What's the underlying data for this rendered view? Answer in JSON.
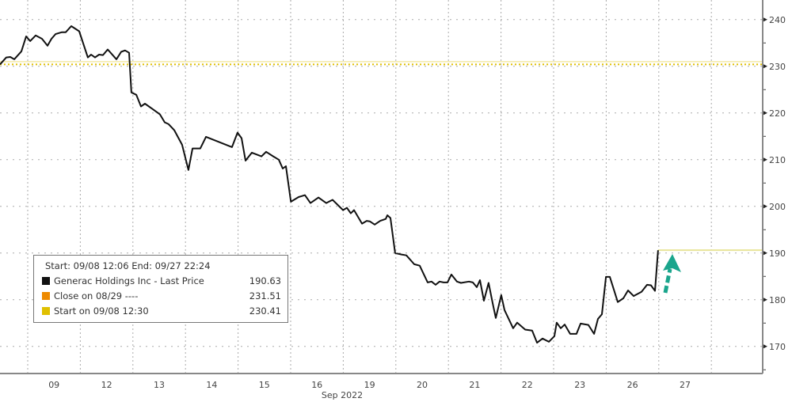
{
  "chart_data": {
    "type": "line",
    "title": "",
    "xlabel": "Sep 2022",
    "ylabel": "",
    "ylim": [
      164.2,
      244.2
    ],
    "grid": true,
    "legend_placement": "bottom-left",
    "y_ticks": [
      170,
      180,
      190,
      200,
      210,
      220,
      230,
      240
    ],
    "y_axis_side": "right",
    "x_tick_labels": [
      "09",
      "12",
      "13",
      "14",
      "15",
      "16",
      "19",
      "20",
      "21",
      "22",
      "23",
      "26",
      "27"
    ],
    "trading_days": [
      "08",
      "09",
      "12",
      "13",
      "14",
      "15",
      "16",
      "19",
      "20",
      "21",
      "22",
      "23",
      "26",
      "27"
    ],
    "legend": {
      "header": "Start: 09/08 12:06 End: 09/27 22:24",
      "entries": [
        {
          "label": "Generac Holdings Inc - Last Price",
          "value": "190.63",
          "color": "#111111"
        },
        {
          "label": "Close on 08/29 ----",
          "value": "231.51",
          "color": "#ee8a00"
        },
        {
          "label": "Start on 09/08 12:30",
          "value": "230.41",
          "color": "#e0c000"
        }
      ]
    },
    "reference_lines": [
      {
        "name": "Close on 08/29",
        "value": 231.51,
        "color": "#f3e9a8"
      },
      {
        "name": "Start on 09/08 12:30",
        "value": 230.41,
        "color": "#e0c000"
      },
      {
        "name": "Last Price",
        "value": 190.63,
        "color": "#e8e49a"
      }
    ],
    "annotation": {
      "type": "arrow",
      "color": "#1aa58c",
      "target": "last price 190.63"
    },
    "series": [
      {
        "name": "Generac Holdings Inc - Last Price",
        "color": "#111111",
        "points": [
          [
            "09/08 12:30",
            230.4
          ],
          [
            "09/08 13:21",
            231.9
          ],
          [
            "09/08 13:51",
            232.0
          ],
          [
            "09/08 14:20",
            231.5
          ],
          [
            "09/08 15:13",
            233.2
          ],
          [
            "09/08 15:48",
            236.4
          ],
          [
            "09/09 09:48",
            235.4
          ],
          [
            "09/09 10:29",
            236.6
          ],
          [
            "09/09 11:16",
            235.9
          ],
          [
            "09/09 11:57",
            234.4
          ],
          [
            "09/09 12:26",
            235.9
          ],
          [
            "09/09 12:56",
            236.9
          ],
          [
            "09/09 13:43",
            237.3
          ],
          [
            "09/09 14:12",
            237.3
          ],
          [
            "09/09 14:53",
            238.6
          ],
          [
            "09/09 15:52",
            237.5
          ],
          [
            "09/12 10:26",
            231.9
          ],
          [
            "09/12 10:50",
            232.5
          ],
          [
            "09/12 11:19",
            231.9
          ],
          [
            "09/12 11:49",
            232.5
          ],
          [
            "09/12 12:18",
            232.4
          ],
          [
            "09/12 12:53",
            233.6
          ],
          [
            "09/12 13:58",
            231.5
          ],
          [
            "09/12 14:33",
            233.1
          ],
          [
            "09/12 15:02",
            233.4
          ],
          [
            "09/12 15:32",
            232.9
          ],
          [
            "09/12 15:49",
            224.4
          ],
          [
            "09/13 09:55",
            223.9
          ],
          [
            "09/13 10:30",
            221.4
          ],
          [
            "09/13 10:59",
            222.0
          ],
          [
            "09/13 11:58",
            220.8
          ],
          [
            "09/13 12:51",
            219.7
          ],
          [
            "09/13 13:26",
            218.0
          ],
          [
            "09/13 13:55",
            217.6
          ],
          [
            "09/13 14:37",
            216.3
          ],
          [
            "09/13 15:35",
            213.2
          ],
          [
            "09/14 09:52",
            207.8
          ],
          [
            "09/14 10:22",
            212.4
          ],
          [
            "09/14 11:20",
            212.4
          ],
          [
            "09/14 12:02",
            214.9
          ],
          [
            "09/14 15:15",
            212.7
          ],
          [
            "09/14 15:56",
            215.8
          ],
          [
            "09/15 09:56",
            214.6
          ],
          [
            "09/15 10:25",
            209.8
          ],
          [
            "09/15 11:12",
            211.5
          ],
          [
            "09/15 12:23",
            210.7
          ],
          [
            "09/15 12:58",
            211.7
          ],
          [
            "09/15 13:51",
            210.7
          ],
          [
            "09/15 14:32",
            210.0
          ],
          [
            "09/15 15:01",
            208.1
          ],
          [
            "09/15 15:25",
            208.6
          ],
          [
            "09/16 09:32",
            201.0
          ],
          [
            "09/16 10:29",
            202.0
          ],
          [
            "09/16 11:16",
            202.4
          ],
          [
            "09/16 11:57",
            200.7
          ],
          [
            "09/16 12:56",
            201.9
          ],
          [
            "09/16 13:54",
            200.7
          ],
          [
            "09/16 14:41",
            201.4
          ],
          [
            "09/16 15:58",
            199.2
          ],
          [
            "09/19 09:57",
            199.7
          ],
          [
            "09/19 10:26",
            198.5
          ],
          [
            "09/19 10:50",
            199.2
          ],
          [
            "09/19 11:49",
            196.3
          ],
          [
            "09/19 12:24",
            196.9
          ],
          [
            "09/19 12:47",
            196.8
          ],
          [
            "09/19 13:23",
            196.1
          ],
          [
            "09/19 14:04",
            196.9
          ],
          [
            "09/19 14:45",
            197.3
          ],
          [
            "09/19 14:57",
            198.1
          ],
          [
            "09/19 15:20",
            197.5
          ],
          [
            "09/19 15:55",
            190.0
          ],
          [
            "09/20 10:12",
            189.7
          ],
          [
            "09/20 10:48",
            189.5
          ],
          [
            "09/20 11:46",
            187.6
          ],
          [
            "09/20 12:27",
            187.3
          ],
          [
            "09/20 13:26",
            183.7
          ],
          [
            "09/20 13:55",
            183.9
          ],
          [
            "09/20 14:25",
            183.2
          ],
          [
            "09/20 14:54",
            183.9
          ],
          [
            "09/20 15:24",
            183.7
          ],
          [
            "09/20 15:53",
            183.7
          ],
          [
            "09/21 09:52",
            185.4
          ],
          [
            "09/21 10:33",
            183.9
          ],
          [
            "09/21 11:03",
            183.6
          ],
          [
            "09/21 12:02",
            183.9
          ],
          [
            "09/21 12:31",
            183.7
          ],
          [
            "09/21 13:00",
            182.7
          ],
          [
            "09/21 13:24",
            184.2
          ],
          [
            "09/21 13:53",
            179.8
          ],
          [
            "09/21 14:28",
            183.6
          ],
          [
            "09/21 14:58",
            179.3
          ],
          [
            "09/21 15:21",
            176.1
          ],
          [
            "09/22 09:32",
            181.0
          ],
          [
            "09/22 09:56",
            177.8
          ],
          [
            "09/22 11:00",
            173.9
          ],
          [
            "09/22 11:30",
            175.1
          ],
          [
            "09/22 12:29",
            173.6
          ],
          [
            "09/22 13:21",
            173.4
          ],
          [
            "09/22 13:57",
            170.8
          ],
          [
            "09/22 14:38",
            171.7
          ],
          [
            "09/22 15:25",
            171.0
          ],
          [
            "09/23 09:36",
            172.2
          ],
          [
            "09/23 09:53",
            175.1
          ],
          [
            "09/23 10:23",
            173.9
          ],
          [
            "09/23 10:52",
            174.7
          ],
          [
            "09/23 11:33",
            172.7
          ],
          [
            "09/23 12:20",
            172.7
          ],
          [
            "09/23 12:50",
            174.9
          ],
          [
            "09/23 13:48",
            174.6
          ],
          [
            "09/23 14:30",
            172.7
          ],
          [
            "09/23 14:59",
            175.9
          ],
          [
            "09/23 15:28",
            176.9
          ],
          [
            "09/23 15:58",
            184.9
          ],
          [
            "09/26 09:57",
            184.9
          ],
          [
            "09/26 10:56",
            179.5
          ],
          [
            "09/26 11:37",
            180.3
          ],
          [
            "09/26 12:12",
            182.0
          ],
          [
            "09/26 12:53",
            180.8
          ],
          [
            "09/26 13:52",
            181.7
          ],
          [
            "09/26 14:33",
            183.2
          ],
          [
            "09/26 15:02",
            183.1
          ],
          [
            "09/26 15:32",
            181.9
          ],
          [
            "09/26 15:55",
            190.6
          ]
        ]
      }
    ]
  }
}
